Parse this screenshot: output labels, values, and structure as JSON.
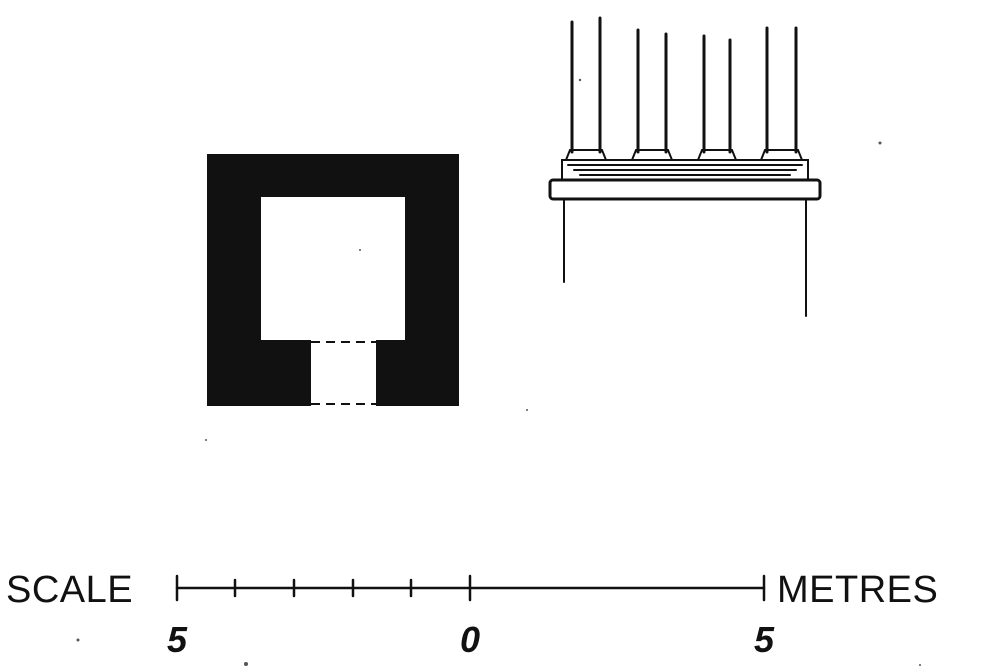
{
  "scale_bar": {
    "left_label": "SCALE",
    "right_label": "METRES",
    "ticks": [
      {
        "label": "5"
      },
      {
        "label": "0"
      },
      {
        "label": "5"
      }
    ]
  },
  "colors": {
    "ink": "#111111",
    "paper": "#ffffff"
  }
}
